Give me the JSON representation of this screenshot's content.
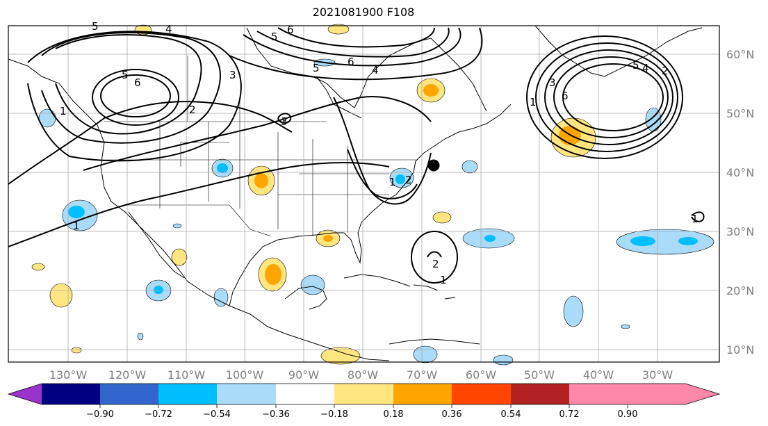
{
  "title": "2021081900 F108",
  "longitude_labels": [
    "130°W",
    "120°W",
    "110°W",
    "100°W",
    "90°W",
    "80°W",
    "70°W",
    "60°W",
    "50°W",
    "40°W",
    "30°W"
  ],
  "latitude_labels": [
    "60°N",
    "50°N",
    "40°N",
    "30°N",
    "20°N",
    "10°N"
  ],
  "colorbar": {
    "tick_labels": [
      "−0.90",
      "−0.72",
      "−0.54",
      "−0.36",
      "−0.18",
      "0.18",
      "0.36",
      "0.54",
      "0.72",
      "0.90"
    ],
    "colors": [
      "#9933cc",
      "#000080",
      "#3366cc",
      "#00bfff",
      "#aadcfa",
      "#ffffff",
      "#ffe680",
      "#ffa500",
      "#ff4500",
      "#b22222",
      "#ff88aa"
    ]
  },
  "contour_labels": [
    "5",
    "4",
    "5",
    "6",
    "5",
    "6",
    "4",
    "3",
    "2",
    "3",
    "5",
    "6",
    "1",
    "1",
    "2",
    "5",
    "4",
    "3",
    "2",
    "6",
    "1",
    "1",
    "2",
    "1",
    "1"
  ],
  "marker": "black-dot"
}
